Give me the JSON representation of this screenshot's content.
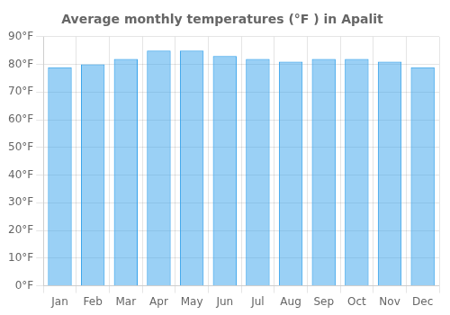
{
  "chart_data": {
    "type": "bar",
    "title": "Average monthly temperatures (°F ) in Apalit",
    "categories": [
      "Jan",
      "Feb",
      "Mar",
      "Apr",
      "May",
      "Jun",
      "Jul",
      "Aug",
      "Sep",
      "Oct",
      "Nov",
      "Dec"
    ],
    "values": [
      79,
      80,
      82,
      85,
      85,
      83,
      82,
      81,
      82,
      82,
      81,
      79
    ],
    "ylim": [
      0,
      90
    ],
    "yticks": [
      {
        "value": 0,
        "label": "0°F"
      },
      {
        "value": 10,
        "label": "10°F"
      },
      {
        "value": 20,
        "label": "20°F"
      },
      {
        "value": 30,
        "label": "30°F"
      },
      {
        "value": 40,
        "label": "40°F"
      },
      {
        "value": 50,
        "label": "50°F"
      },
      {
        "value": 60,
        "label": "60°F"
      },
      {
        "value": 70,
        "label": "70°F"
      },
      {
        "value": 80,
        "label": "80°F"
      },
      {
        "value": 90,
        "label": "90°F"
      }
    ],
    "grid": true
  }
}
